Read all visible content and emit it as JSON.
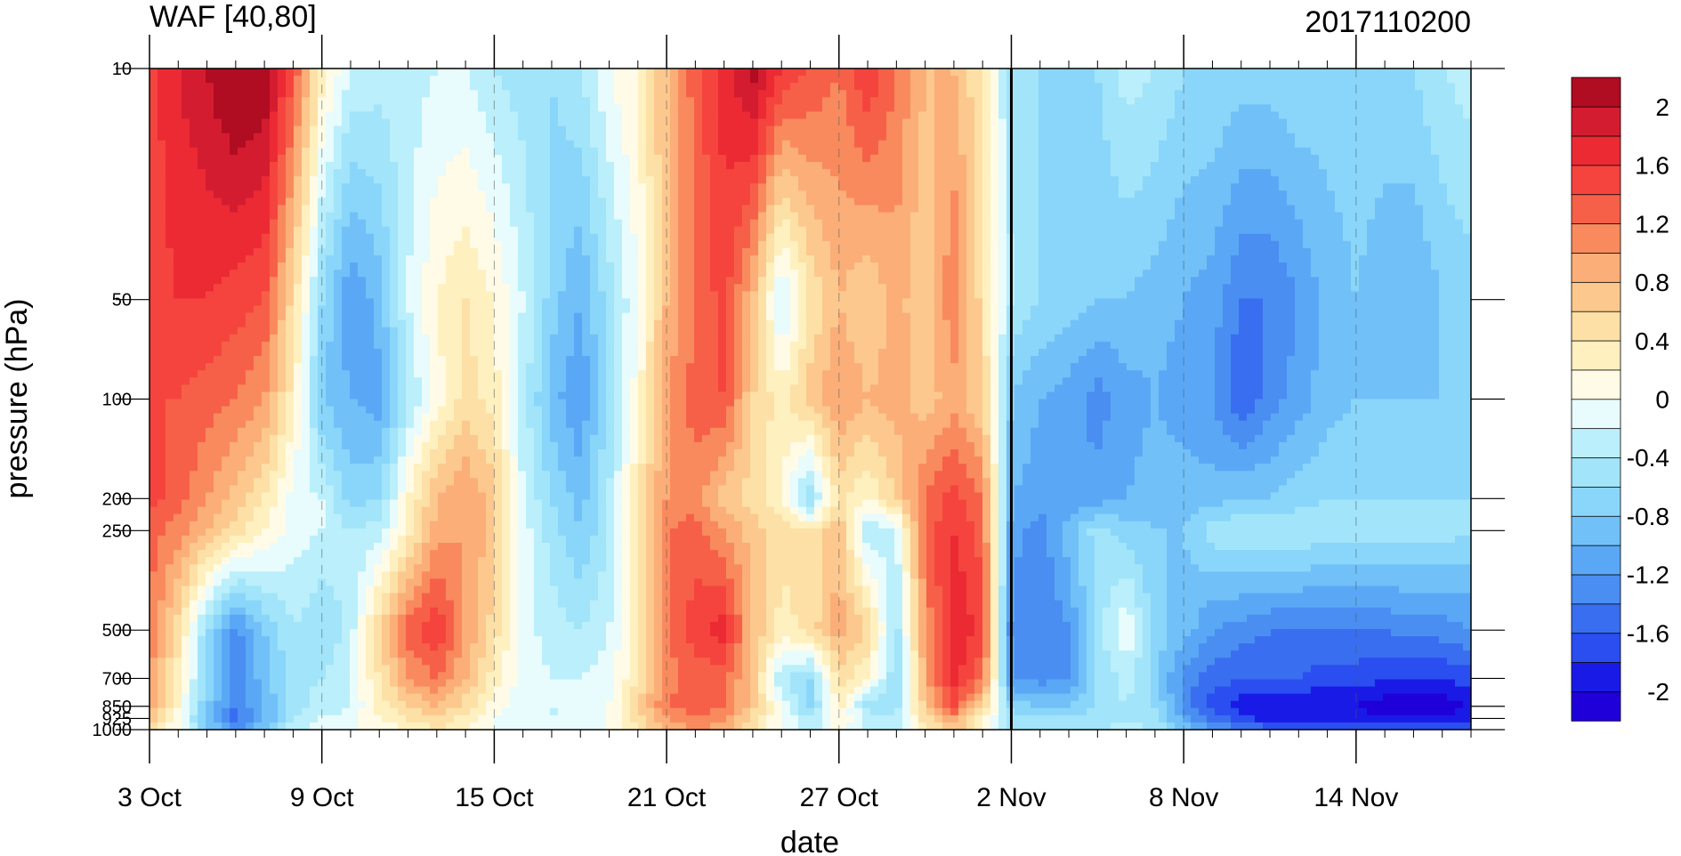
{
  "chart_data": {
    "type": "heatmap",
    "title": "WAF [40,80]",
    "subtitle": "2017110200",
    "xlabel": "date",
    "ylabel": "pressure (hPa)",
    "x_range": [
      "2017-10-03",
      "2017-11-18"
    ],
    "y_range": [
      1000,
      10
    ],
    "y_scale": "log",
    "x_tick_labels": [
      {
        "date": "2017-10-03",
        "label": "3 Oct"
      },
      {
        "date": "2017-10-09",
        "label": "9 Oct"
      },
      {
        "date": "2017-10-15",
        "label": "15 Oct"
      },
      {
        "date": "2017-10-21",
        "label": "21 Oct"
      },
      {
        "date": "2017-10-27",
        "label": "27 Oct"
      },
      {
        "date": "2017-11-02",
        "label": "2 Nov"
      },
      {
        "date": "2017-11-08",
        "label": "8 Nov"
      },
      {
        "date": "2017-11-14",
        "label": "14 Nov"
      }
    ],
    "y_tick_labels": [
      {
        "value": 10,
        "label": "10"
      },
      {
        "value": 50,
        "label": "50"
      },
      {
        "value": 100,
        "label": "100"
      },
      {
        "value": 200,
        "label": "200"
      },
      {
        "value": 250,
        "label": "250"
      },
      {
        "value": 500,
        "label": "500"
      },
      {
        "value": 700,
        "label": "700"
      },
      {
        "value": 850,
        "label": "850"
      },
      {
        "value": 925,
        "label": "925"
      },
      {
        "value": 1000,
        "label": "1000"
      }
    ],
    "forecast_start": "2017-11-02",
    "colorbar": {
      "levels": [
        -2.2,
        -2,
        -1.8,
        -1.6,
        -1.4,
        -1.2,
        -1,
        -0.8,
        -0.6,
        -0.4,
        -0.2,
        0,
        0.2,
        0.4,
        0.6,
        0.8,
        1,
        1.2,
        1.4,
        1.6,
        1.8,
        2,
        2.2
      ],
      "colors": [
        "#2000d8",
        "#1a1ae6",
        "#2a4ef0",
        "#3a6ef0",
        "#4a8ef2",
        "#5aa8f5",
        "#72c0f8",
        "#8ad6fa",
        "#a2e4fa",
        "#baeffb",
        "#e8fbfd",
        "#fffbe6",
        "#fff0c0",
        "#fde0a6",
        "#fcc88e",
        "#fbae78",
        "#f98a5e",
        "#f76048",
        "#f5443e",
        "#ec2a34",
        "#d41c30",
        "#b00c22"
      ],
      "tick_labels": [
        {
          "value": 2,
          "label": "2"
        },
        {
          "value": 1.6,
          "label": "1.6"
        },
        {
          "value": 1.2,
          "label": "1.2"
        },
        {
          "value": 0.8,
          "label": "0.8"
        },
        {
          "value": 0.4,
          "label": "0.4"
        },
        {
          "value": 0,
          "label": "0"
        },
        {
          "value": -0.4,
          "label": "-0.4"
        },
        {
          "value": -0.8,
          "label": "-0.8"
        },
        {
          "value": -1.2,
          "label": "-1.2"
        },
        {
          "value": -1.6,
          "label": "-1.6"
        },
        {
          "value": -2,
          "label": "-2"
        }
      ]
    },
    "grid_pressure": [
      10,
      50,
      100,
      200,
      250,
      500,
      700,
      850,
      925,
      1000
    ],
    "grid_days": [
      "2017-10-03",
      "2017-10-04",
      "2017-10-05",
      "2017-10-06",
      "2017-10-07",
      "2017-10-08",
      "2017-10-09",
      "2017-10-10",
      "2017-10-11",
      "2017-10-12",
      "2017-10-13",
      "2017-10-14",
      "2017-10-15",
      "2017-10-16",
      "2017-10-17",
      "2017-10-18",
      "2017-10-19",
      "2017-10-20",
      "2017-10-21",
      "2017-10-22",
      "2017-10-23",
      "2017-10-24",
      "2017-10-25",
      "2017-10-26",
      "2017-10-27",
      "2017-10-28",
      "2017-10-29",
      "2017-10-30",
      "2017-10-31",
      "2017-11-01",
      "2017-11-02",
      "2017-11-03",
      "2017-11-04",
      "2017-11-05",
      "2017-11-06",
      "2017-11-07",
      "2017-11-08",
      "2017-11-09",
      "2017-11-10",
      "2017-11-11",
      "2017-11-12",
      "2017-11-13",
      "2017-11-14",
      "2017-11-15",
      "2017-11-16",
      "2017-11-17",
      "2017-11-18"
    ],
    "grid_values": [
      [
        1.5,
        1.8,
        2.0,
        2.3,
        2.2,
        1.4,
        0.3,
        -0.2,
        -0.3,
        -0.3,
        -0.2,
        -0.2,
        -0.4,
        -0.5,
        -0.6,
        -0.4,
        0.0,
        0.2,
        0.8,
        1.3,
        1.7,
        2.1,
        1.6,
        1.4,
        1.2,
        1.6,
        1.2,
        0.8,
        0.8,
        0.4,
        -0.5,
        -0.6,
        -0.7,
        -0.6,
        -0.3,
        -0.4,
        -0.6,
        -0.6,
        -0.7,
        -0.7,
        -0.6,
        -0.7,
        -0.7,
        -0.7,
        -0.6,
        -0.4,
        -0.3
      ],
      [
        1.5,
        1.6,
        1.6,
        1.5,
        1.4,
        0.5,
        -0.6,
        -1.2,
        -0.9,
        -0.2,
        0.2,
        0.4,
        0.2,
        -0.2,
        -0.7,
        -1.0,
        -0.5,
        0.0,
        0.8,
        1.2,
        1.5,
        0.8,
        -0.3,
        0.4,
        0.8,
        0.6,
        0.9,
        0.6,
        1.2,
        0.5,
        -0.4,
        -0.6,
        -0.7,
        -0.8,
        -0.8,
        -0.9,
        -1.0,
        -1.1,
        -1.4,
        -1.4,
        -1.2,
        -0.9,
        -0.8,
        -0.9,
        -1.0,
        -0.8,
        -0.7
      ],
      [
        1.4,
        1.4,
        1.3,
        1.2,
        1.0,
        0.3,
        -0.8,
        -1.0,
        -1.1,
        -0.4,
        0.1,
        0.5,
        0.3,
        -0.3,
        -0.9,
        -1.2,
        -0.5,
        0.1,
        1.0,
        1.3,
        1.4,
        0.6,
        0.3,
        0.7,
        1.0,
        0.8,
        0.9,
        0.7,
        0.9,
        0.6,
        -0.8,
        -1.0,
        -1.1,
        -1.3,
        -1.1,
        -1.0,
        -1.1,
        -1.2,
        -1.6,
        -1.3,
        -1.1,
        -0.9,
        -0.8,
        -0.8,
        -0.8,
        -0.8,
        -0.7
      ],
      [
        1.5,
        1.3,
        1.0,
        0.7,
        0.4,
        -0.1,
        -0.2,
        -0.7,
        -0.6,
        0.2,
        0.8,
        1.0,
        0.7,
        -0.2,
        -0.6,
        -0.9,
        -0.4,
        0.4,
        1.0,
        1.1,
        0.7,
        0.5,
        0.2,
        -0.6,
        0.5,
        0.2,
        0.6,
        1.2,
        1.5,
        1.2,
        -1.0,
        -1.1,
        -1.2,
        -1.1,
        -1.0,
        -0.9,
        -0.9,
        -0.9,
        -0.8,
        -0.8,
        -0.7,
        -0.6,
        -0.6,
        -0.6,
        -0.6,
        -0.6,
        -0.6
      ],
      [
        1.3,
        1.1,
        0.8,
        0.5,
        0.2,
        -0.1,
        -0.2,
        -0.4,
        -0.3,
        0.3,
        0.9,
        1.0,
        0.7,
        -0.1,
        -0.5,
        -0.8,
        -0.4,
        0.3,
        1.2,
        1.3,
        1.0,
        0.7,
        0.5,
        0.4,
        0.8,
        -0.4,
        -0.2,
        1.3,
        1.6,
        1.3,
        -1.1,
        -1.3,
        -0.9,
        -0.5,
        -0.7,
        -0.8,
        -0.8,
        -0.5,
        -0.4,
        -0.4,
        -0.4,
        -0.5,
        -0.5,
        -0.5,
        -0.5,
        -0.5,
        -0.6
      ],
      [
        1.2,
        0.5,
        -0.6,
        -1.3,
        -0.8,
        -0.4,
        -0.6,
        -0.3,
        0.6,
        1.3,
        1.6,
        1.0,
        0.5,
        -0.1,
        -0.3,
        -0.4,
        -0.2,
        0.3,
        1.2,
        1.5,
        1.7,
        0.8,
        0.3,
        0.5,
        0.9,
        0.6,
        -0.5,
        1.0,
        1.8,
        1.5,
        -1.3,
        -1.4,
        -1.2,
        -0.5,
        0.0,
        -0.7,
        -0.9,
        -1.2,
        -1.3,
        -1.4,
        -1.4,
        -1.4,
        -1.4,
        -1.4,
        -1.3,
        -1.3,
        -1.2
      ],
      [
        1.0,
        0.3,
        -0.6,
        -1.3,
        -0.9,
        -0.5,
        -0.4,
        -0.2,
        0.4,
        1.0,
        1.2,
        0.8,
        0.3,
        -0.1,
        -0.2,
        -0.2,
        -0.1,
        0.4,
        1.1,
        1.3,
        1.3,
        0.7,
        -0.4,
        -0.6,
        0.5,
        0.2,
        -0.6,
        0.9,
        1.7,
        1.2,
        -1.2,
        -1.3,
        -1.2,
        -0.6,
        -0.3,
        -0.7,
        -1.3,
        -1.5,
        -1.6,
        -1.6,
        -1.6,
        -1.7,
        -1.7,
        -1.8,
        -1.8,
        -1.8,
        -1.7
      ],
      [
        0.9,
        0.2,
        -0.8,
        -1.4,
        -1.0,
        -0.5,
        -0.3,
        -0.2,
        0.3,
        0.6,
        0.8,
        0.5,
        0.1,
        -0.1,
        -0.2,
        -0.2,
        0.0,
        0.6,
        1.2,
        1.3,
        1.2,
        0.7,
        0.0,
        -0.7,
        0.3,
        -0.5,
        -0.5,
        0.7,
        1.4,
        0.6,
        -0.7,
        -0.8,
        -0.8,
        -0.6,
        -0.4,
        -0.6,
        -1.3,
        -1.7,
        -1.9,
        -2.0,
        -2.0,
        -2.0,
        -2.0,
        -2.1,
        -2.1,
        -2.1,
        -2.0
      ],
      [
        0.7,
        0.1,
        -0.9,
        -1.5,
        -1.0,
        -0.4,
        -0.2,
        -0.1,
        0.2,
        0.4,
        0.6,
        0.3,
        0.0,
        -0.1,
        -0.2,
        -0.2,
        0.0,
        0.5,
        1.0,
        1.2,
        1.1,
        0.5,
        0.0,
        -0.4,
        0.2,
        -0.3,
        -0.4,
        0.5,
        1.0,
        0.3,
        -0.5,
        -0.6,
        -0.6,
        -0.5,
        -0.4,
        -0.5,
        -1.1,
        -1.5,
        -1.7,
        -1.9,
        -1.9,
        -1.9,
        -1.9,
        -2.0,
        -2.0,
        -2.0,
        -1.9
      ],
      [
        0.5,
        0.0,
        -0.7,
        -1.2,
        -0.8,
        -0.3,
        -0.1,
        0.0,
        0.1,
        0.2,
        0.4,
        0.2,
        0.0,
        -0.1,
        -0.1,
        -0.1,
        0.0,
        0.4,
        0.8,
        1.0,
        0.9,
        0.4,
        0.0,
        -0.3,
        0.1,
        -0.2,
        -0.3,
        0.3,
        0.7,
        0.2,
        -0.4,
        -0.5,
        -0.5,
        -0.4,
        -0.3,
        -0.4,
        -0.9,
        -1.2,
        -1.4,
        -1.5,
        -1.5,
        -1.5,
        -1.5,
        -1.6,
        -1.6,
        -1.6,
        -1.5
      ]
    ]
  }
}
